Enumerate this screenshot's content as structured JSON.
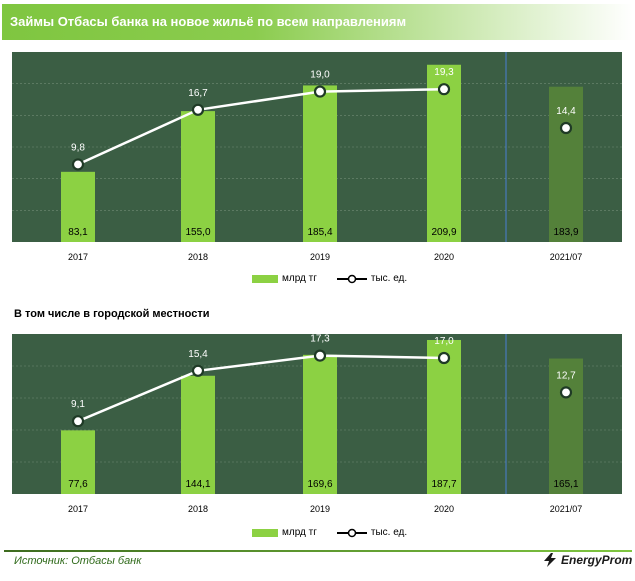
{
  "title": "Займы Отбасы банка на новое жильё по всем направлениям",
  "subtitle": "В том числе  в городской местности",
  "source": "Источник: Отбасы банк",
  "brand": "EnergyProm",
  "legend": {
    "bars": "млрд тг",
    "line": "тыс. ед."
  },
  "colors": {
    "bar": "#8cd143",
    "bar_last": "#54813a",
    "bg": "#3b5e44",
    "line": "#ffffff",
    "title_bg": "#7fc640"
  },
  "chart_data": [
    {
      "type": "bar",
      "categories": [
        "2017",
        "2018",
        "2019",
        "2020",
        "2021/07"
      ],
      "series": [
        {
          "name": "млрд тг",
          "values": [
            83.1,
            155.0,
            185.4,
            209.9,
            183.9
          ],
          "labels": [
            "83,1",
            "155,0",
            "185,4",
            "209,9",
            "183,9"
          ]
        },
        {
          "name": "тыс. ед.",
          "values": [
            9.8,
            16.7,
            19.0,
            19.3,
            14.4
          ],
          "labels": [
            "9,8",
            "16,7",
            "19,0",
            "19,3",
            "14,4"
          ]
        }
      ]
    },
    {
      "type": "bar",
      "categories": [
        "2017",
        "2018",
        "2019",
        "2020",
        "2021/07"
      ],
      "series": [
        {
          "name": "млрд тг",
          "values": [
            77.6,
            144.1,
            169.6,
            187.7,
            165.1
          ],
          "labels": [
            "77,6",
            "144,1",
            "169,6",
            "187,7",
            "165,1"
          ]
        },
        {
          "name": "тыс. ед.",
          "values": [
            9.1,
            15.4,
            17.3,
            17.0,
            12.7
          ],
          "labels": [
            "9,1",
            "15,4",
            "17,3",
            "17,0",
            "12,7"
          ]
        }
      ]
    }
  ]
}
